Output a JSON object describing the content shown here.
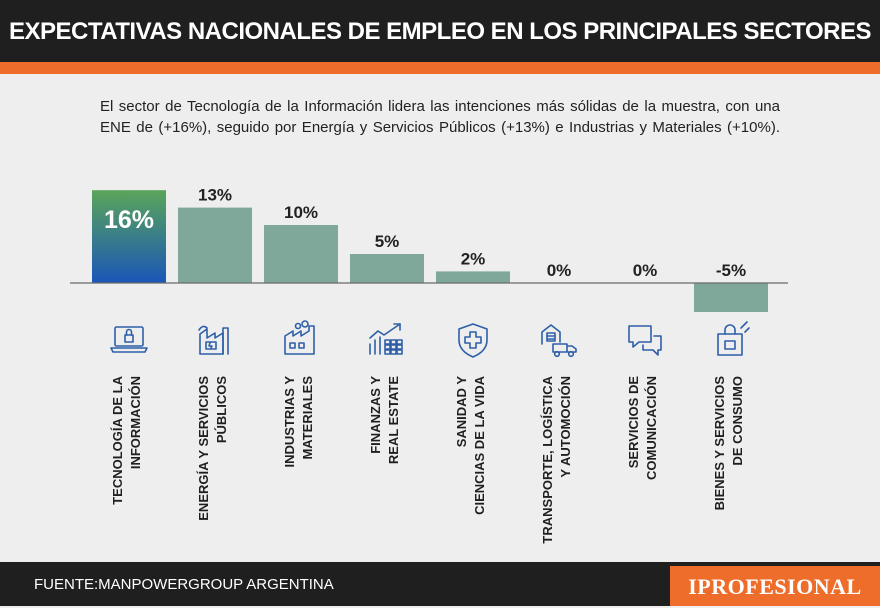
{
  "header": {
    "title": "EXPECTATIVAS NACIONALES DE EMPLEO EN LOS PRINCIPALES SECTORES"
  },
  "subtitle": "El sector de Tecnología de la Información lidera las intenciones más sólidas de la muestra, con una ENE de (+16%), seguido por Energía y Servicios Públicos (+13%) e Industrias y Materiales (+10%).",
  "footer": {
    "source": "FUENTE:MANPOWERGROUP ARGENTINA",
    "brand": "IPROFESIONAL"
  },
  "colors": {
    "bar": "#7fa89b",
    "highlight_top": "#5aa55a",
    "highlight_bottom": "#1a56b8",
    "icon": "#2e5fa8",
    "accent": "#ee6d2a",
    "dark": "#1f1f1f"
  },
  "chart_data": {
    "type": "bar",
    "title": "EXPECTATIVAS NACIONALES DE EMPLEO EN LOS PRINCIPALES SECTORES",
    "unit": "%",
    "categories": [
      [
        "TECNOLOGÍA DE LA",
        "INFORMACIÓN"
      ],
      [
        "ENERGÍA Y SERVICIOS",
        "PÚBLICOS"
      ],
      [
        "INDUSTRIAS Y",
        "MATERIALES"
      ],
      [
        "FINANZAS Y",
        "REAL ESTATE"
      ],
      [
        "SANIDAD Y",
        "CIENCIAS DE LA VIDA"
      ],
      [
        "TRANSPORTE, LOGÍSTICA",
        "Y AUTOMOCIÓN"
      ],
      [
        "SERVICIOS DE",
        "COMUNICACIÓN"
      ],
      [
        "BIENES Y SERVICIOS",
        "DE CONSUMO"
      ]
    ],
    "values": [
      16,
      13,
      10,
      5,
      2,
      0,
      0,
      -5
    ],
    "labels": [
      "16%",
      "13%",
      "10%",
      "5%",
      "2%",
      "0%",
      "0%",
      "-5%"
    ],
    "icons": [
      "laptop-lock-icon",
      "energy-factory-icon",
      "industry-icon",
      "finance-chart-icon",
      "health-shield-icon",
      "transport-truck-icon",
      "chat-bubbles-icon",
      "consumer-bag-icon"
    ],
    "highlight_index": 0,
    "ylim": [
      -5,
      16
    ],
    "grid": false,
    "legend": "none"
  }
}
